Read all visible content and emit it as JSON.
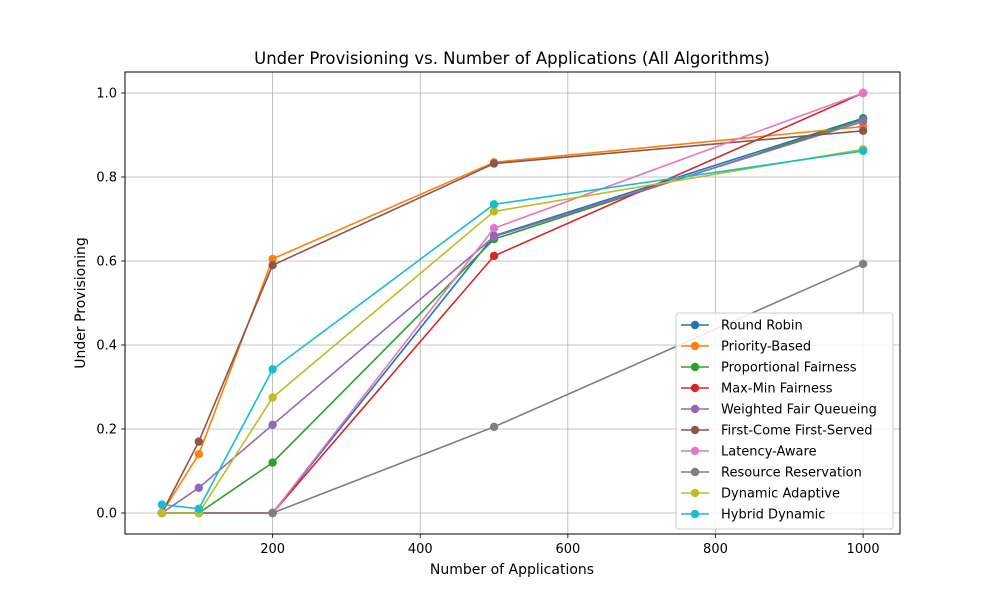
{
  "chart_data": {
    "type": "line",
    "title": "Under Provisioning vs. Number of Applications (All Algorithms)",
    "xlabel": "Number of Applications",
    "ylabel": "Under Provisioning",
    "x": [
      50,
      100,
      200,
      500,
      1000
    ],
    "xlim": [
      0,
      1050
    ],
    "ylim": [
      -0.05,
      1.05
    ],
    "xticks": [
      200,
      400,
      600,
      800,
      1000
    ],
    "yticks": [
      0.0,
      0.2,
      0.4,
      0.6,
      0.8,
      1.0
    ],
    "xtick_labels": [
      "200",
      "400",
      "600",
      "800",
      "1000"
    ],
    "ytick_labels": [
      "0.0",
      "0.2",
      "0.4",
      "0.6",
      "0.8",
      "1.0"
    ],
    "grid": true,
    "legend_position": "lower-right",
    "series": [
      {
        "name": "Round Robin",
        "color": "#1f77b4",
        "values": [
          0.0,
          0.0,
          0.0,
          0.66,
          0.94
        ]
      },
      {
        "name": "Priority-Based",
        "color": "#ff7f0e",
        "values": [
          0.0,
          0.14,
          0.605,
          0.835,
          0.92
        ]
      },
      {
        "name": "Proportional Fairness",
        "color": "#2ca02c",
        "values": [
          0.0,
          0.0,
          0.12,
          0.652,
          0.937
        ]
      },
      {
        "name": "Max-Min Fairness",
        "color": "#d62728",
        "values": [
          0.0,
          0.0,
          0.0,
          0.612,
          1.0
        ]
      },
      {
        "name": "Weighted Fair Queueing",
        "color": "#9467bd",
        "values": [
          0.0,
          0.06,
          0.21,
          0.658,
          0.932
        ]
      },
      {
        "name": "First-Come First-Served",
        "color": "#8c564b",
        "values": [
          0.0,
          0.17,
          0.59,
          0.832,
          0.91
        ]
      },
      {
        "name": "Latency-Aware",
        "color": "#e377c2",
        "values": [
          0.0,
          0.0,
          0.0,
          0.678,
          1.0
        ]
      },
      {
        "name": "Resource Reservation",
        "color": "#7f7f7f",
        "values": [
          0.0,
          0.0,
          0.0,
          0.205,
          0.593
        ]
      },
      {
        "name": "Dynamic Adaptive",
        "color": "#bcbd22",
        "values": [
          0.0,
          0.0,
          0.275,
          0.718,
          0.866
        ]
      },
      {
        "name": "Hybrid Dynamic",
        "color": "#17becf",
        "values": [
          0.02,
          0.01,
          0.342,
          0.735,
          0.862
        ]
      }
    ]
  }
}
